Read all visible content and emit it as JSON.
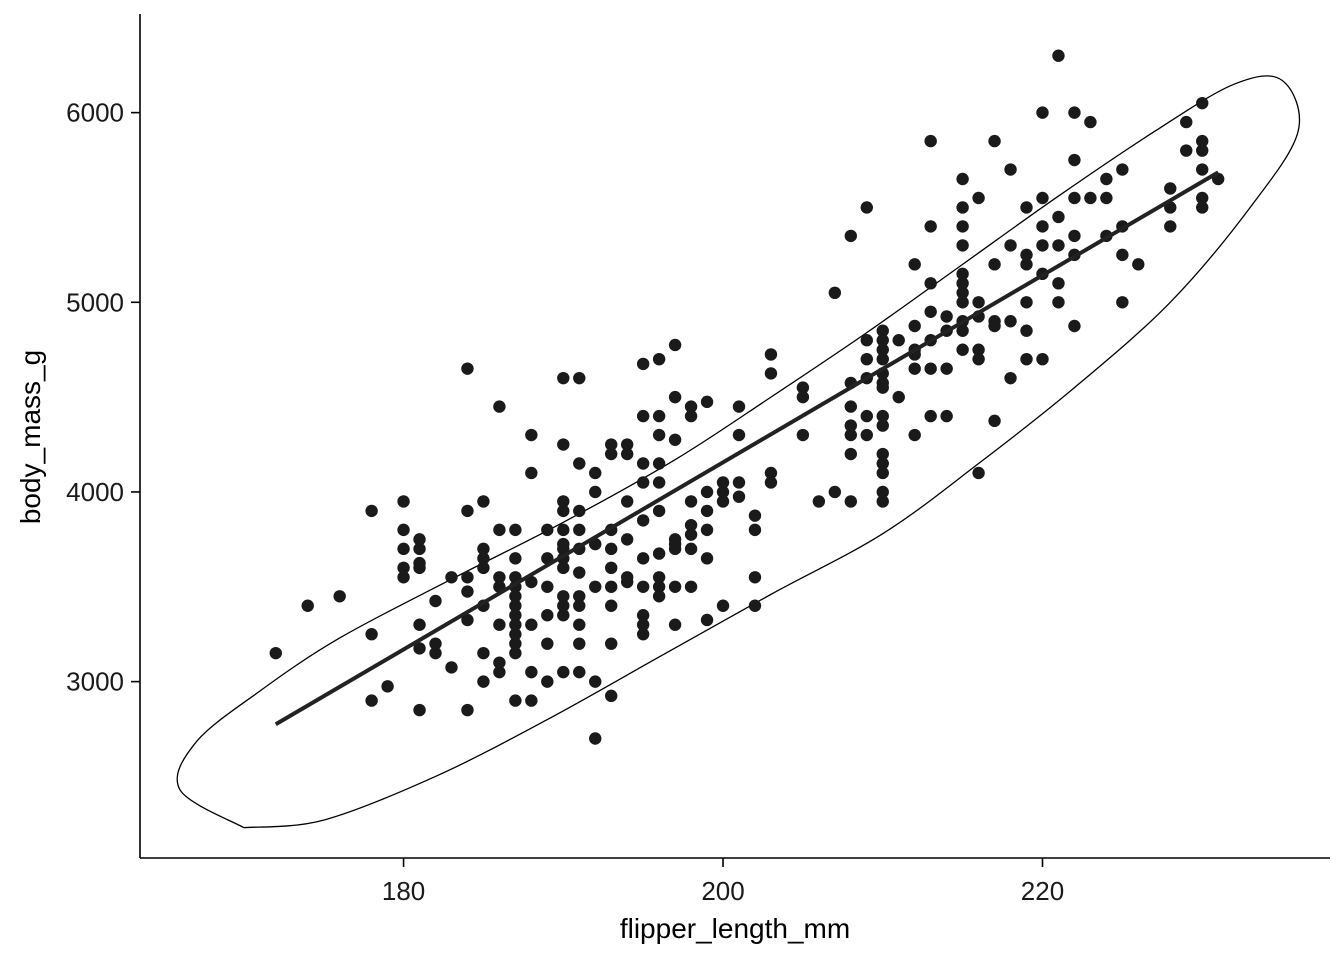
{
  "chart_data": {
    "type": "scatter",
    "title": "",
    "xlabel": "flipper_length_mm",
    "ylabel": "body_mass_g",
    "xlim": [
      163.5,
      238
    ],
    "ylim": [
      2070,
      6520
    ],
    "x_ticks": [
      180,
      200,
      220
    ],
    "y_ticks": [
      3000,
      4000,
      5000,
      6000
    ],
    "grid": false,
    "legend": "none",
    "point_color": "#1a1a1a",
    "points": [
      [
        172,
        3150
      ],
      [
        174,
        3400
      ],
      [
        176,
        3450
      ],
      [
        178,
        3900
      ],
      [
        178,
        3250
      ],
      [
        178,
        2900
      ],
      [
        179,
        2975
      ],
      [
        180,
        3950
      ],
      [
        180,
        3800
      ],
      [
        180,
        3700
      ],
      [
        180,
        3600
      ],
      [
        180,
        3550
      ],
      [
        181,
        3750
      ],
      [
        181,
        3700
      ],
      [
        181,
        3625
      ],
      [
        181,
        3600
      ],
      [
        181,
        3300
      ],
      [
        181,
        3175
      ],
      [
        181,
        2850
      ],
      [
        182,
        3425
      ],
      [
        182,
        3200
      ],
      [
        182,
        3150
      ],
      [
        183,
        3550
      ],
      [
        183,
        3075
      ],
      [
        184,
        4650
      ],
      [
        184,
        3900
      ],
      [
        184,
        3550
      ],
      [
        184,
        3475
      ],
      [
        184,
        3325
      ],
      [
        184,
        2850
      ],
      [
        185,
        3950
      ],
      [
        185,
        3700
      ],
      [
        185,
        3650
      ],
      [
        185,
        3600
      ],
      [
        185,
        3400
      ],
      [
        185,
        3150
      ],
      [
        185,
        3000
      ],
      [
        186,
        4450
      ],
      [
        186,
        3800
      ],
      [
        186,
        3550
      ],
      [
        186,
        3500
      ],
      [
        186,
        3300
      ],
      [
        186,
        3100
      ],
      [
        186,
        3050
      ],
      [
        187,
        3800
      ],
      [
        187,
        3650
      ],
      [
        187,
        3550
      ],
      [
        187,
        3500
      ],
      [
        187,
        3450
      ],
      [
        187,
        3400
      ],
      [
        187,
        3350
      ],
      [
        187,
        3300
      ],
      [
        187,
        3250
      ],
      [
        187,
        3200
      ],
      [
        187,
        3150
      ],
      [
        187,
        2900
      ],
      [
        188,
        4300
      ],
      [
        188,
        4100
      ],
      [
        188,
        3525
      ],
      [
        188,
        3300
      ],
      [
        188,
        3050
      ],
      [
        188,
        2900
      ],
      [
        189,
        3800
      ],
      [
        189,
        3650
      ],
      [
        189,
        3500
      ],
      [
        189,
        3350
      ],
      [
        189,
        3200
      ],
      [
        189,
        3000
      ],
      [
        190,
        4600
      ],
      [
        190,
        4250
      ],
      [
        190,
        3950
      ],
      [
        190,
        3900
      ],
      [
        190,
        3800
      ],
      [
        190,
        3725
      ],
      [
        190,
        3700
      ],
      [
        190,
        3650
      ],
      [
        190,
        3600
      ],
      [
        190,
        3450
      ],
      [
        190,
        3400
      ],
      [
        190,
        3350
      ],
      [
        190,
        3050
      ],
      [
        191,
        4600
      ],
      [
        191,
        4150
      ],
      [
        191,
        3900
      ],
      [
        191,
        3800
      ],
      [
        191,
        3700
      ],
      [
        191,
        3575
      ],
      [
        191,
        3450
      ],
      [
        191,
        3400
      ],
      [
        191,
        3300
      ],
      [
        191,
        3200
      ],
      [
        191,
        3050
      ],
      [
        192,
        4100
      ],
      [
        192,
        4000
      ],
      [
        192,
        3725
      ],
      [
        192,
        3500
      ],
      [
        192,
        3000
      ],
      [
        192,
        2700
      ],
      [
        193,
        4250
      ],
      [
        193,
        4200
      ],
      [
        193,
        3800
      ],
      [
        193,
        3700
      ],
      [
        193,
        3600
      ],
      [
        193,
        3500
      ],
      [
        193,
        3400
      ],
      [
        193,
        3200
      ],
      [
        193,
        2925
      ],
      [
        194,
        4250
      ],
      [
        194,
        4200
      ],
      [
        194,
        3950
      ],
      [
        194,
        3750
      ],
      [
        194,
        3550
      ],
      [
        194,
        3525
      ],
      [
        195,
        4675
      ],
      [
        195,
        4400
      ],
      [
        195,
        4150
      ],
      [
        195,
        4050
      ],
      [
        195,
        3850
      ],
      [
        195,
        3650
      ],
      [
        195,
        3500
      ],
      [
        195,
        3350
      ],
      [
        195,
        3300
      ],
      [
        195,
        3250
      ],
      [
        196,
        4700
      ],
      [
        196,
        4400
      ],
      [
        196,
        4300
      ],
      [
        196,
        4150
      ],
      [
        196,
        4050
      ],
      [
        196,
        3900
      ],
      [
        196,
        3675
      ],
      [
        196,
        3550
      ],
      [
        196,
        3500
      ],
      [
        196,
        3450
      ],
      [
        197,
        4775
      ],
      [
        197,
        4500
      ],
      [
        197,
        4275
      ],
      [
        197,
        3750
      ],
      [
        197,
        3725
      ],
      [
        197,
        3700
      ],
      [
        197,
        3500
      ],
      [
        197,
        3300
      ],
      [
        198,
        4450
      ],
      [
        198,
        4400
      ],
      [
        198,
        3950
      ],
      [
        198,
        3825
      ],
      [
        198,
        3775
      ],
      [
        198,
        3700
      ],
      [
        198,
        3500
      ],
      [
        199,
        4475
      ],
      [
        199,
        4000
      ],
      [
        199,
        3900
      ],
      [
        199,
        3800
      ],
      [
        199,
        3650
      ],
      [
        199,
        3325
      ],
      [
        200,
        4050
      ],
      [
        200,
        4000
      ],
      [
        200,
        3950
      ],
      [
        200,
        3400
      ],
      [
        201,
        4450
      ],
      [
        201,
        4300
      ],
      [
        201,
        4050
      ],
      [
        201,
        3975
      ],
      [
        202,
        3875
      ],
      [
        202,
        3800
      ],
      [
        202,
        3550
      ],
      [
        202,
        3400
      ],
      [
        203,
        4725
      ],
      [
        203,
        4625
      ],
      [
        203,
        4100
      ],
      [
        203,
        4050
      ],
      [
        205,
        4550
      ],
      [
        205,
        4500
      ],
      [
        205,
        4300
      ],
      [
        206,
        3950
      ],
      [
        207,
        5050
      ],
      [
        207,
        4000
      ],
      [
        208,
        5350
      ],
      [
        208,
        4575
      ],
      [
        208,
        4450
      ],
      [
        208,
        4350
      ],
      [
        208,
        4300
      ],
      [
        208,
        4200
      ],
      [
        208,
        3950
      ],
      [
        209,
        5500
      ],
      [
        209,
        4800
      ],
      [
        209,
        4700
      ],
      [
        209,
        4600
      ],
      [
        209,
        4400
      ],
      [
        209,
        4300
      ],
      [
        210,
        4850
      ],
      [
        210,
        4800
      ],
      [
        210,
        4750
      ],
      [
        210,
        4700
      ],
      [
        210,
        4625
      ],
      [
        210,
        4575
      ],
      [
        210,
        4550
      ],
      [
        210,
        4400
      ],
      [
        210,
        4350
      ],
      [
        210,
        4200
      ],
      [
        210,
        4150
      ],
      [
        210,
        4100
      ],
      [
        210,
        4000
      ],
      [
        210,
        3950
      ],
      [
        211,
        4800
      ],
      [
        211,
        4500
      ],
      [
        212,
        5200
      ],
      [
        212,
        4875
      ],
      [
        212,
        4750
      ],
      [
        212,
        4725
      ],
      [
        212,
        4650
      ],
      [
        212,
        4300
      ],
      [
        213,
        5850
      ],
      [
        213,
        5400
      ],
      [
        213,
        5100
      ],
      [
        213,
        4950
      ],
      [
        213,
        4800
      ],
      [
        213,
        4650
      ],
      [
        213,
        4400
      ],
      [
        214,
        4925
      ],
      [
        214,
        4850
      ],
      [
        214,
        4650
      ],
      [
        214,
        4400
      ],
      [
        215,
        5650
      ],
      [
        215,
        5500
      ],
      [
        215,
        5400
      ],
      [
        215,
        5300
      ],
      [
        215,
        5150
      ],
      [
        215,
        5100
      ],
      [
        215,
        5050
      ],
      [
        215,
        5000
      ],
      [
        215,
        4900
      ],
      [
        215,
        4850
      ],
      [
        215,
        4750
      ],
      [
        216,
        5550
      ],
      [
        216,
        5000
      ],
      [
        216,
        4925
      ],
      [
        216,
        4750
      ],
      [
        216,
        4700
      ],
      [
        216,
        4100
      ],
      [
        217,
        5850
      ],
      [
        217,
        5200
      ],
      [
        217,
        4900
      ],
      [
        217,
        4875
      ],
      [
        217,
        4375
      ],
      [
        218,
        5700
      ],
      [
        218,
        5300
      ],
      [
        218,
        4900
      ],
      [
        218,
        4600
      ],
      [
        219,
        5500
      ],
      [
        219,
        5250
      ],
      [
        219,
        5200
      ],
      [
        219,
        5000
      ],
      [
        219,
        4850
      ],
      [
        219,
        4700
      ],
      [
        220,
        6000
      ],
      [
        220,
        5550
      ],
      [
        220,
        5400
      ],
      [
        220,
        5300
      ],
      [
        220,
        5150
      ],
      [
        220,
        4700
      ],
      [
        221,
        6300
      ],
      [
        221,
        5450
      ],
      [
        221,
        5300
      ],
      [
        221,
        5100
      ],
      [
        221,
        5000
      ],
      [
        222,
        6000
      ],
      [
        222,
        5750
      ],
      [
        222,
        5550
      ],
      [
        222,
        5350
      ],
      [
        222,
        5250
      ],
      [
        222,
        4875
      ],
      [
        223,
        5950
      ],
      [
        223,
        5550
      ],
      [
        224,
        5650
      ],
      [
        224,
        5550
      ],
      [
        224,
        5350
      ],
      [
        225,
        5700
      ],
      [
        225,
        5400
      ],
      [
        225,
        5250
      ],
      [
        225,
        5000
      ],
      [
        226,
        5200
      ],
      [
        228,
        5600
      ],
      [
        228,
        5500
      ],
      [
        228,
        5400
      ],
      [
        229,
        5950
      ],
      [
        229,
        5800
      ],
      [
        230,
        6050
      ],
      [
        230,
        5850
      ],
      [
        230,
        5800
      ],
      [
        230,
        5700
      ],
      [
        230,
        5550
      ],
      [
        230,
        5500
      ],
      [
        231,
        5650
      ]
    ],
    "fit_line": {
      "x": [
        172,
        231
      ],
      "y": [
        2775,
        5685
      ]
    },
    "ellipse": [
      [
        170,
        2230
      ],
      [
        166,
        2430
      ],
      [
        167,
        2680
      ],
      [
        171,
        2950
      ],
      [
        176,
        3230
      ],
      [
        183,
        3540
      ],
      [
        190,
        3840
      ],
      [
        197,
        4170
      ],
      [
        203,
        4500
      ],
      [
        209,
        4840
      ],
      [
        215,
        5200
      ],
      [
        221,
        5560
      ],
      [
        227,
        5900
      ],
      [
        232,
        6150
      ],
      [
        235,
        6170
      ],
      [
        236,
        5900
      ],
      [
        233,
        5500
      ],
      [
        228,
        5000
      ],
      [
        222,
        4550
      ],
      [
        216,
        4150
      ],
      [
        210,
        3780
      ],
      [
        203,
        3460
      ],
      [
        196,
        3130
      ],
      [
        189,
        2800
      ],
      [
        182,
        2500
      ],
      [
        175,
        2270
      ],
      [
        170,
        2230
      ]
    ]
  }
}
